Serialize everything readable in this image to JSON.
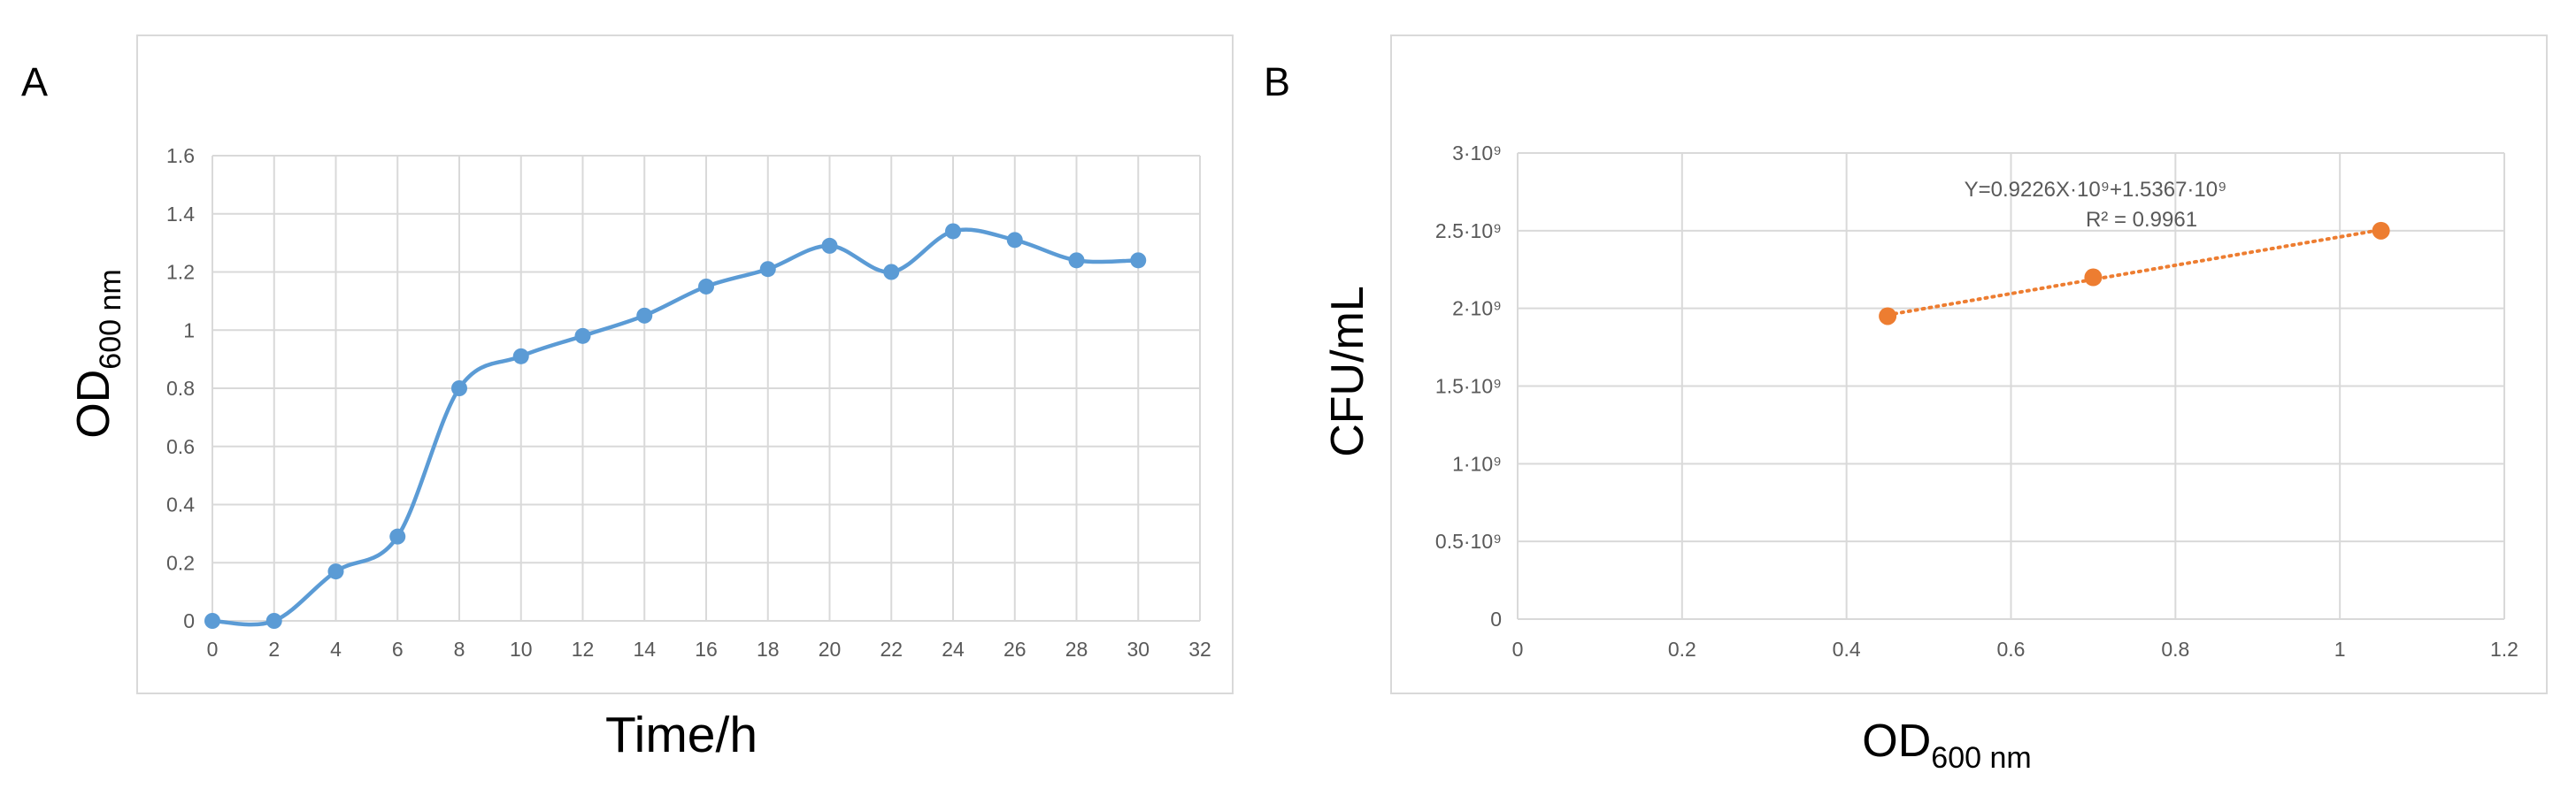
{
  "colors": {
    "series_blue": "#5B9BD5",
    "trend_orange": "#ED7D31",
    "grid": "#D9D9D9",
    "frame": "#D9D9D9",
    "tick_text": "#595959"
  },
  "panel_a": {
    "letter": "A",
    "ylabel_main": "OD",
    "ylabel_sub": "600 nm",
    "xlabel": "Time/h"
  },
  "panel_b": {
    "letter": "B",
    "ylabel": "CFU/mL",
    "xlabel_main": "OD",
    "xlabel_sub": "600 nm",
    "equation": "Y=0.9226X·10⁹+1.5367·10⁹",
    "r_squared": "R² = 0.9961"
  },
  "chart_data": [
    {
      "type": "line",
      "panel": "A",
      "smoothed": true,
      "x": [
        0,
        2,
        4,
        6,
        8,
        10,
        12,
        14,
        16,
        18,
        20,
        22,
        24,
        26,
        28,
        30
      ],
      "series": [
        {
          "values": [
            0,
            0,
            0.17,
            0.29,
            0.8,
            0.91,
            0.98,
            1.05,
            1.15,
            1.21,
            1.29,
            1.2,
            1.34,
            1.31,
            1.24,
            1.24
          ]
        }
      ],
      "xlim": [
        0,
        32
      ],
      "ylim": [
        0,
        1.6
      ],
      "xticks": [
        "0",
        "2",
        "4",
        "6",
        "8",
        "10",
        "12",
        "14",
        "16",
        "18",
        "20",
        "22",
        "24",
        "26",
        "28",
        "30",
        "32"
      ],
      "yticks": [
        "0",
        "0.2",
        "0.4",
        "0.6",
        "0.8",
        "1",
        "1.2",
        "1.4",
        "1.6"
      ],
      "grid": true
    },
    {
      "type": "scatter",
      "panel": "B",
      "trendline": "linear",
      "x": [
        0.45,
        0.7,
        1.05
      ],
      "series": [
        {
          "values": [
            1950000000,
            2200000000,
            2500000000
          ]
        }
      ],
      "xlim": [
        0,
        1.2
      ],
      "ylim": [
        0,
        3000000000
      ],
      "xticks": [
        "0",
        "0.2",
        "0.4",
        "0.6",
        "0.8",
        "1",
        "1.2"
      ],
      "yticks": [
        "0",
        "0.5·10⁹",
        "1·10⁹",
        "1.5·10⁹",
        "2·10⁹",
        "2.5·10⁹",
        "3·10⁹"
      ],
      "grid": true
    }
  ]
}
